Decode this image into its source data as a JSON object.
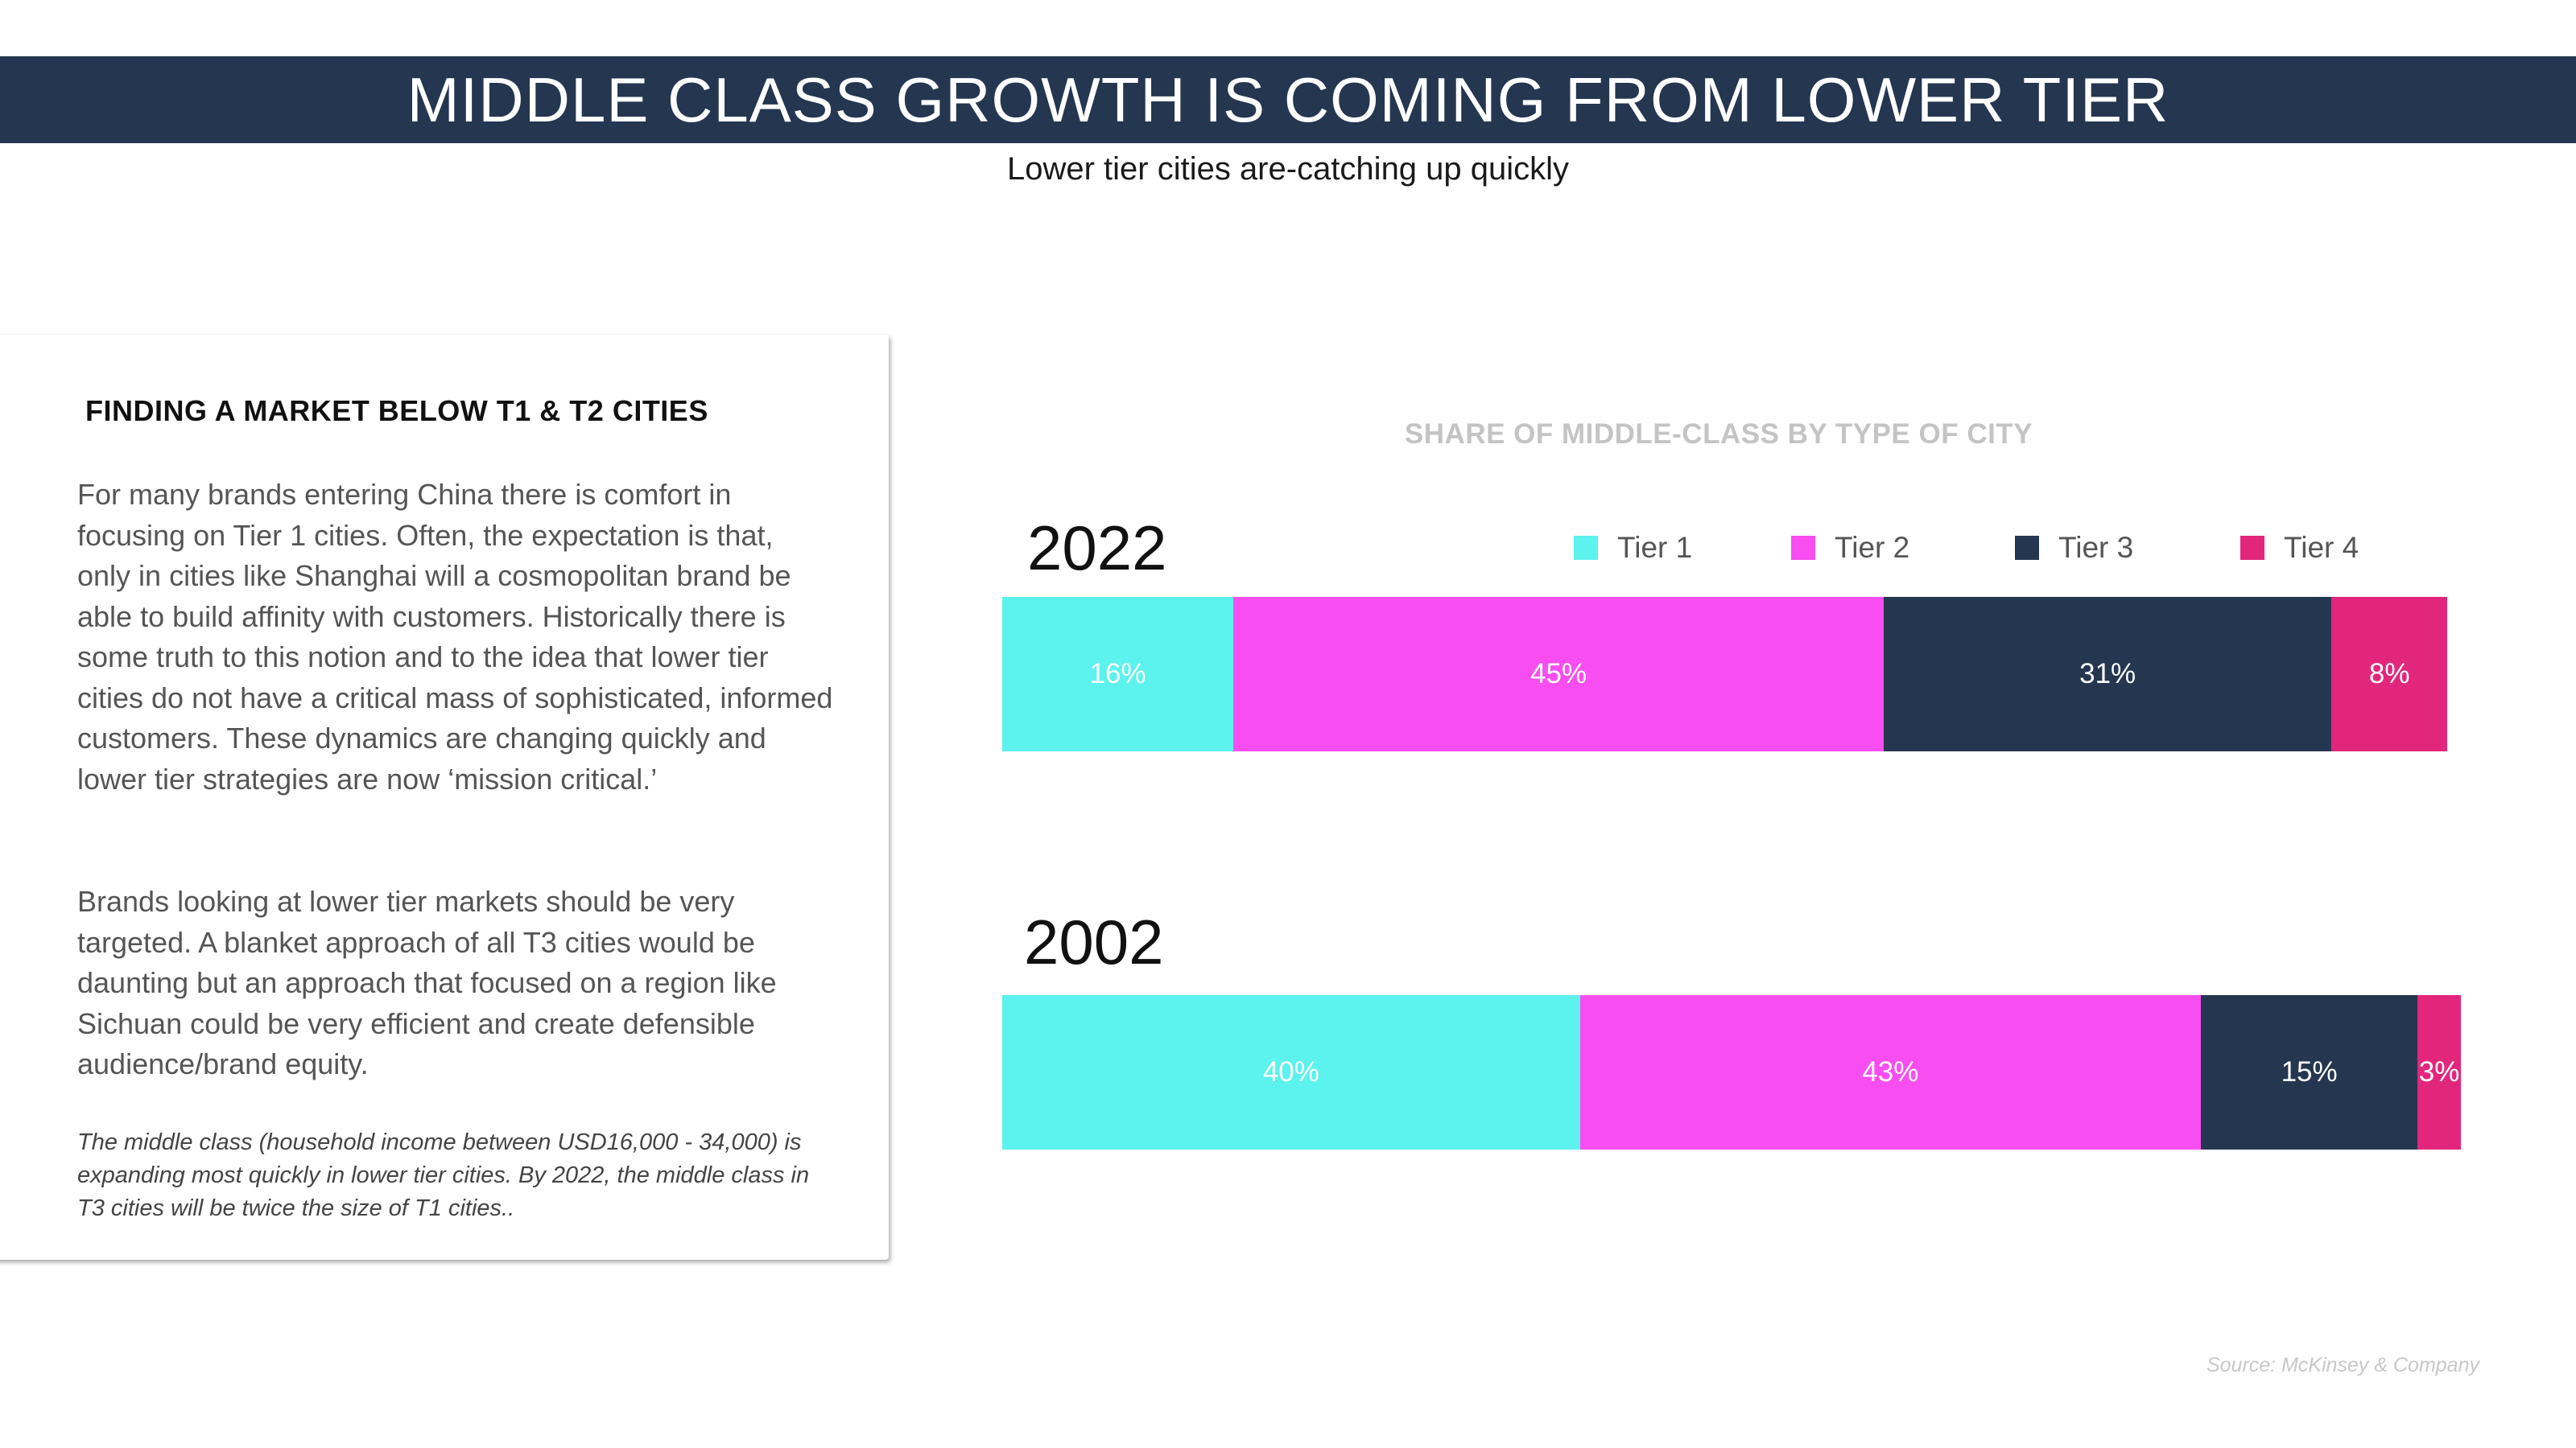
{
  "header": {
    "title": "MIDDLE CLASS GROWTH IS COMING FROM LOWER TIER",
    "subtitle": "Lower tier cities are-catching up quickly"
  },
  "card": {
    "heading": "FINDING A MARKET BELOW T1 & T2 CITIES",
    "paragraph1": "For many brands entering China there is comfort in focusing on Tier 1 cities. Often, the expectation is that, only in cities like Shanghai will a cosmopolitan brand be able to build affinity with customers. Historically there is some truth to this notion and to the idea that lower tier cities do not have a critical mass of sophisticated, informed customers. These dynamics are changing quickly and lower tier strategies are now ‘mission critical.’",
    "paragraph2": "Brands looking at lower tier markets should be very targeted. A blanket approach of all T3 cities would be daunting but an approach that focused on a region like Sichuan could be very efficient and create defensible audience/brand equity.",
    "note": "The middle class (household income between USD16,000 - 34,000) is expanding most quickly in lower tier cities. By 2022, the middle class in T3 cities will be twice the size of T1 cities.."
  },
  "source": "Source: McKinsey & Company",
  "colors": {
    "title_bar": "#243650",
    "tier1": "#5cf2ee",
    "tier2": "#f84df0",
    "tier3": "#243650",
    "tier4": "#e2267c"
  },
  "chart_data": {
    "type": "bar",
    "orientation": "horizontal-stacked-100",
    "title": "SHARE OF MIDDLE-CLASS BY TYPE OF CITY",
    "series": [
      {
        "name": "Tier 1",
        "color": "#5cf2ee"
      },
      {
        "name": "Tier 2",
        "color": "#f84df0"
      },
      {
        "name": "Tier 3",
        "color": "#243650"
      },
      {
        "name": "Tier 4",
        "color": "#e2267c"
      }
    ],
    "bars": [
      {
        "year": "2022",
        "values": [
          16,
          45,
          31,
          8
        ],
        "labels": [
          "16%",
          "45%",
          "31%",
          "8%"
        ]
      },
      {
        "year": "2002",
        "values": [
          40,
          43,
          15,
          3
        ],
        "labels": [
          "40%",
          "43%",
          "15%",
          "3%"
        ]
      }
    ],
    "legend_position": "top-right",
    "unit": "%"
  }
}
